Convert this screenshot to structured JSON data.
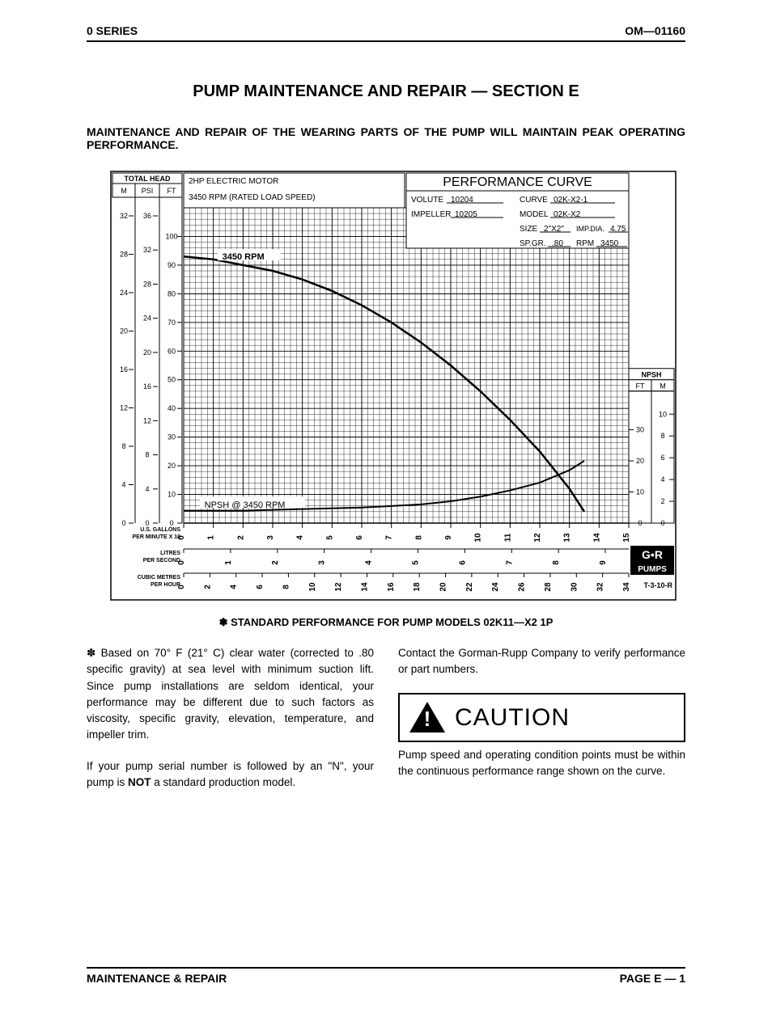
{
  "header": {
    "left": "0 SERIES",
    "right": "OM—01160"
  },
  "title": "PUMP MAINTENANCE AND REPAIR — SECTION E",
  "subtitle": "MAINTENANCE AND REPAIR OF THE WEARING PARTS OF THE PUMP WILL MAINTAIN PEAK OPERATING PERFORMANCE.",
  "chart": {
    "title": "PERFORMANCE CURVE",
    "motor_label": "2HP ELECTRIC MOTOR",
    "rpm_label": "3450 RPM (RATED LOAD SPEED)",
    "curve_label_top": "3450 RPM",
    "npsh_label": "NPSH @ 3450 RPM",
    "info": {
      "volute_label": "VOLUTE",
      "volute_val": "10204",
      "curve_label": "CURVE",
      "curve_val": "02K-X2-1",
      "impeller_label": "IMPELLER",
      "impeller_val": "10205",
      "model_label": "MODEL",
      "model_val": "02K-X2",
      "size_label": "SIZE",
      "size_val": "2\"X2\"",
      "impdia_label": "IMP.DIA.",
      "impdia_val": "4.75",
      "spgr_label": "SP.GR.",
      "spgr_val": ".80",
      "rpm2_label": "RPM",
      "rpm2_val": "3450"
    },
    "left_axis": {
      "header": "TOTAL HEAD",
      "cols": [
        "M",
        "PSI",
        "FT"
      ],
      "m": [
        32,
        28,
        24,
        20,
        16,
        12,
        8,
        4,
        0
      ],
      "psi": [
        36,
        32,
        28,
        24,
        20,
        16,
        12,
        8,
        4,
        0
      ],
      "ft": [
        100,
        90,
        80,
        70,
        60,
        50,
        40,
        30,
        20,
        10,
        0
      ]
    },
    "right_axis": {
      "npsh_label": "NPSH",
      "cols": [
        "FT",
        "M"
      ],
      "ft": [
        30,
        20,
        10,
        0
      ],
      "m": [
        10,
        8,
        6,
        4,
        2,
        0
      ]
    },
    "x_axes": {
      "gpm_label": "U.S. GALLONS\nPER MINUTE X 10",
      "gpm": [
        0,
        1,
        2,
        3,
        4,
        5,
        6,
        7,
        8,
        9,
        10,
        11,
        12,
        13,
        14,
        15
      ],
      "lps_label": "LITRES\nPER SECOND",
      "lps": [
        0,
        1,
        2,
        3,
        4,
        5,
        6,
        7,
        8,
        9
      ],
      "cmh_label": "CUBIC METRES\nPER HOUR",
      "cmh": [
        0,
        2,
        4,
        6,
        8,
        10,
        12,
        14,
        16,
        18,
        20,
        22,
        24,
        26,
        28,
        30,
        32,
        34
      ]
    },
    "head_curve": {
      "x": [
        0,
        1,
        2,
        3,
        4,
        5,
        6,
        7,
        8,
        9,
        10,
        11,
        12,
        13,
        13.5
      ],
      "ft": [
        93,
        92,
        90,
        88,
        85,
        81,
        76,
        70,
        63,
        55,
        46,
        36,
        25,
        12,
        4
      ]
    },
    "npsh_curve": {
      "x": [
        0,
        2,
        4,
        6,
        7,
        8,
        9,
        10,
        11,
        12,
        13,
        13.5
      ],
      "ft": [
        4,
        4,
        4.5,
        5,
        5.5,
        6,
        7,
        8.5,
        10.5,
        13,
        17,
        20
      ]
    },
    "logo_text": "PUMPS",
    "drawing_no": "T-3-10-R"
  },
  "caption": "✽ STANDARD PERFORMANCE FOR PUMP MODELS 02K11—X2 1P",
  "body": {
    "p1a": "✽ Based on 70° F (21° C) clear water (corrected to .80 specific gravity) at sea level with minimum suction lift. Since pump installations are seldom identical, your performance may be different due to such factors as viscosity, specific gravity, elevation, temperature, and impeller trim.",
    "p1b_pre": "If your pump serial number is followed by an \"N\", your pump is ",
    "p1b_bold": "NOT",
    "p1b_post": " a standard production model.",
    "p2a": "Contact the Gorman-Rupp Company to verify performance or part numbers.",
    "caution_label": "CAUTION",
    "p2b": "Pump speed and operating condition points must be within the continuous performance range shown on the curve."
  },
  "footer": {
    "left": "MAINTENANCE & REPAIR",
    "right": "PAGE E — 1"
  },
  "colors": {
    "line": "#000000",
    "grid": "#000000",
    "bg": "#ffffff"
  }
}
